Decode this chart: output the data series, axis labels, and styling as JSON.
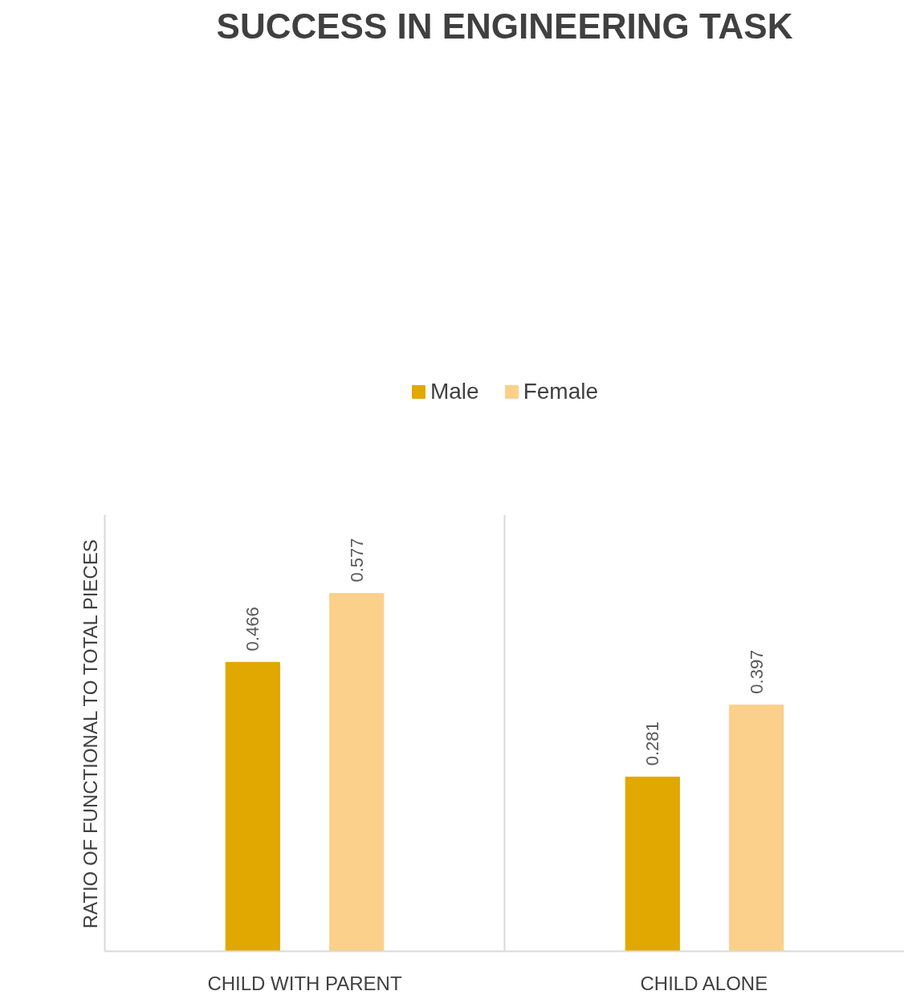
{
  "chart_data": {
    "type": "bar",
    "title": "SUCCESS IN ENGINEERING TASK",
    "ylabel": "RATIO OF FUNCTIONAL TO TOTAL PIECES",
    "categories": [
      "CHILD WITH PARENT",
      "CHILD ALONE"
    ],
    "series": [
      {
        "name": "Male",
        "color": "#e0a800",
        "values": [
          0.466,
          0.281
        ]
      },
      {
        "name": "Female",
        "color": "#fbd08a",
        "values": [
          0.577,
          0.397
        ]
      }
    ],
    "data_labels": true,
    "legend": "top",
    "grid": false
  }
}
